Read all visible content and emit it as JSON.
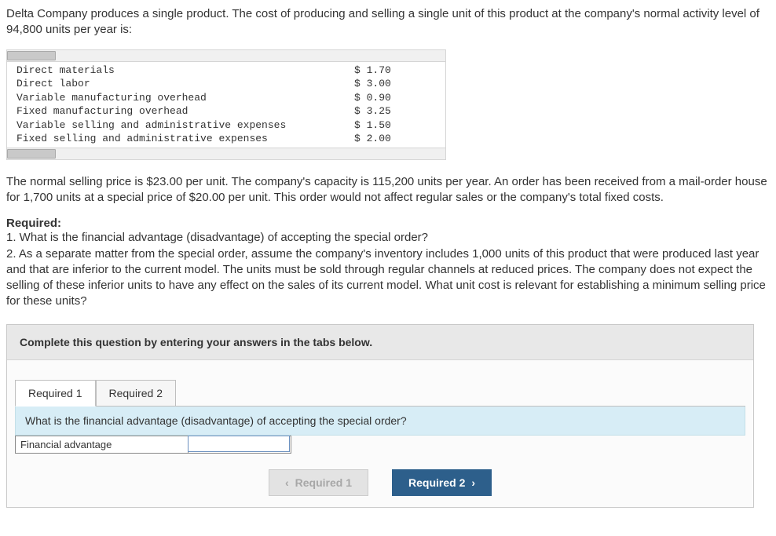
{
  "intro": "Delta Company produces a single product. The cost of producing and selling a single unit of this product at the company's normal activity level of 94,800 units per year is:",
  "cost_table": {
    "rows": [
      {
        "label": "Direct materials",
        "value": "$ 1.70"
      },
      {
        "label": "Direct labor",
        "value": "$ 3.00"
      },
      {
        "label": "Variable manufacturing overhead",
        "value": "$ 0.90"
      },
      {
        "label": "Fixed manufacturing overhead",
        "value": "$ 3.25"
      },
      {
        "label": "Variable selling and administrative expenses",
        "value": "$ 1.50"
      },
      {
        "label": "Fixed selling and administrative expenses",
        "value": "$ 2.00"
      }
    ],
    "font_family": "Courier New",
    "border_color": "#d5d5d5",
    "header_bg": "#f0f0f0"
  },
  "paragraph2": "The normal selling price is $23.00 per unit. The company's capacity is 115,200 units per year. An order has been received from a mail-order house for 1,700 units at a special price of $20.00 per unit. This order would not affect regular sales or the company's total fixed costs.",
  "required": {
    "heading": "Required:",
    "items": [
      "1. What is the financial advantage (disadvantage) of accepting the special order?",
      "2. As a separate matter from the special order, assume the company's inventory includes 1,000 units of this product that were produced last year and that are inferior to the current model. The units must be sold through regular channels at reduced prices. The company does not expect the selling of these inferior units to have any effect on the sales of its current model. What unit cost is relevant for establishing a minimum selling price for these units?"
    ]
  },
  "answer_area": {
    "instruction": "Complete this question by entering your answers in the tabs below.",
    "tabs": [
      {
        "label": "Required 1",
        "active": true
      },
      {
        "label": "Required 2",
        "active": false
      }
    ],
    "question": "What is the financial advantage (disadvantage) of accepting the special order?",
    "row_label": "Financial advantage",
    "input_value": "",
    "nav": {
      "prev": "Required 1",
      "next": "Required 2"
    },
    "colors": {
      "instruction_bg": "#e8e8e8",
      "question_bg": "#d7edf6",
      "primary_btn_bg": "#2d5f8b",
      "disabled_btn_bg": "#e3e3e3",
      "disabled_btn_fg": "#a7a7a7"
    }
  }
}
